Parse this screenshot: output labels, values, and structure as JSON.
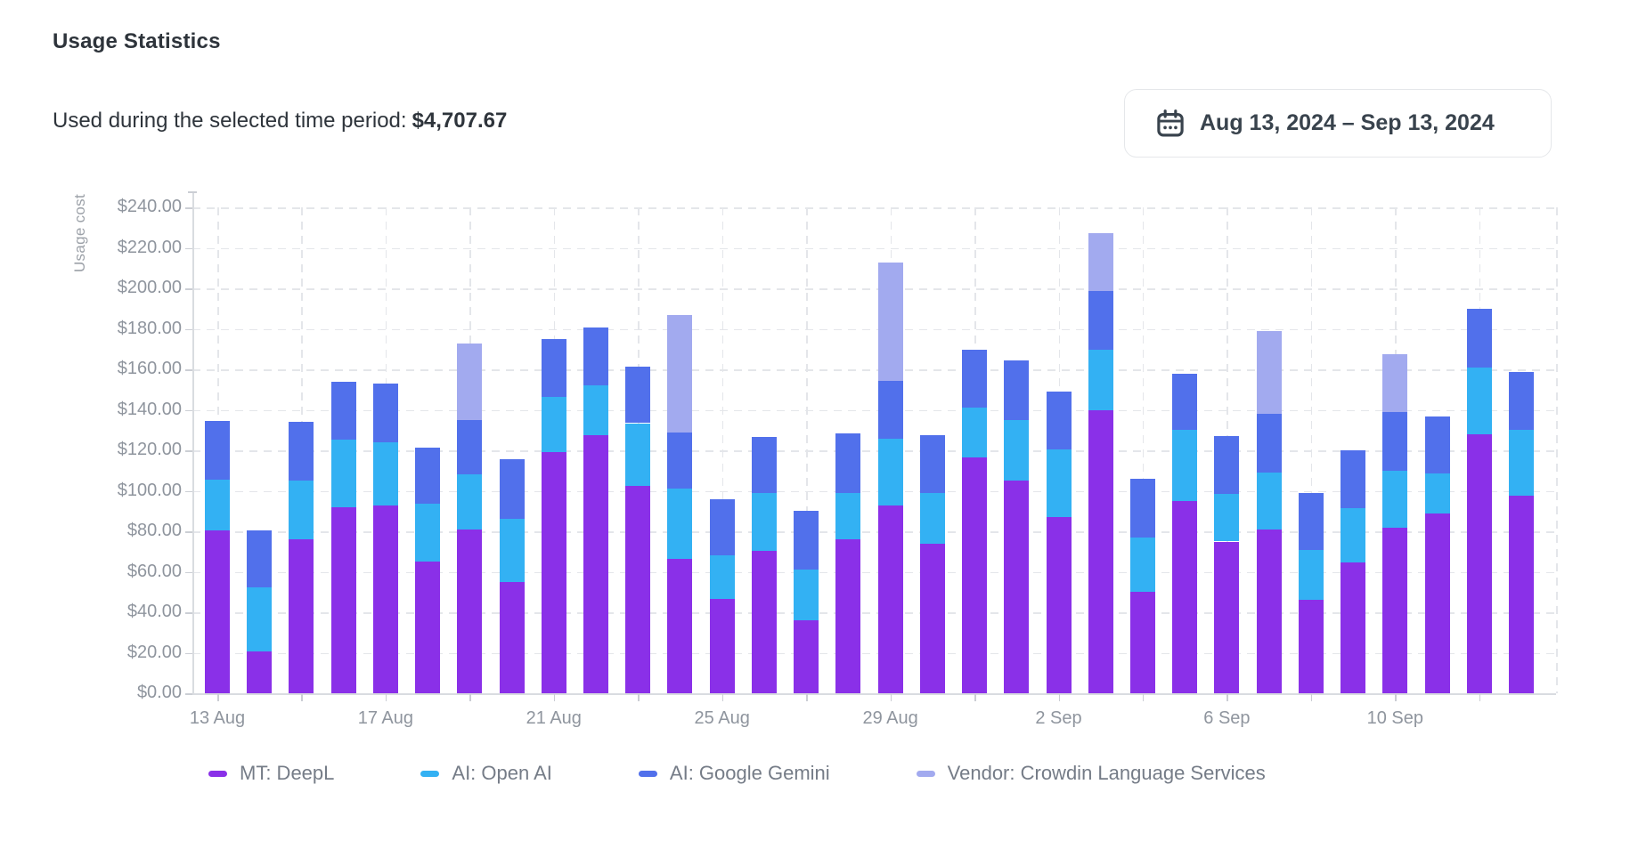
{
  "header": {
    "title": "Usage Statistics",
    "subtitle_label": "Used during the selected time period:",
    "subtitle_value": "$4,707.67",
    "date_range": "Aug 13, 2024 – Sep 13, 2024",
    "calendar_icon": "calendar-icon"
  },
  "chart_data": {
    "type": "bar",
    "stacked": true,
    "title": "",
    "xlabel": "",
    "ylabel": "Usage cost",
    "ylim": [
      0,
      240
    ],
    "ytick_step": 20,
    "ytick_prefix": "$",
    "grid": "dashed",
    "legend_position": "bottom",
    "categories": [
      "13 Aug",
      "14 Aug",
      "15 Aug",
      "16 Aug",
      "17 Aug",
      "18 Aug",
      "19 Aug",
      "20 Aug",
      "21 Aug",
      "22 Aug",
      "23 Aug",
      "24 Aug",
      "25 Aug",
      "26 Aug",
      "27 Aug",
      "28 Aug",
      "29 Aug",
      "30 Aug",
      "31 Aug",
      "1 Sep",
      "2 Sep",
      "3 Sep",
      "4 Sep",
      "5 Sep",
      "6 Sep",
      "7 Sep",
      "8 Sep",
      "9 Sep",
      "10 Sep",
      "11 Sep",
      "12 Sep",
      "13 Sep"
    ],
    "x_axis_labels": [
      "13 Aug",
      "17 Aug",
      "21 Aug",
      "25 Aug",
      "29 Aug",
      "2 Sep",
      "6 Sep",
      "10 Sep"
    ],
    "x_label_indices": [
      0,
      4,
      8,
      12,
      16,
      20,
      24,
      28
    ],
    "series": [
      {
        "name": "MT: DeepL",
        "color": "#8a30e8",
        "values": [
          80.5,
          20.5,
          76,
          92,
          93,
          65,
          81,
          55,
          119,
          127.5,
          102.5,
          66.5,
          46.5,
          70.5,
          36,
          76,
          93,
          74,
          116.5,
          105,
          87,
          140,
          50,
          95,
          75,
          81,
          46,
          64.5,
          82,
          89,
          128,
          97.5
        ]
      },
      {
        "name": "AI: Open AI",
        "color": "#33b1f3",
        "values": [
          25,
          32,
          29,
          33.5,
          31,
          28.5,
          27,
          31,
          27.5,
          24.5,
          31,
          34.5,
          21.5,
          28.5,
          25,
          23,
          33,
          25,
          24.5,
          30,
          33.5,
          30,
          27,
          35,
          23.5,
          28,
          25,
          27,
          28,
          19.5,
          33,
          32.5
        ]
      },
      {
        "name": "AI: Google Gemini",
        "color": "#5170eb",
        "values": [
          29,
          28,
          29,
          28.5,
          29,
          28,
          27,
          29.5,
          28.5,
          29,
          28,
          28,
          28,
          27.5,
          29,
          29.5,
          28.5,
          28.5,
          29,
          29.5,
          28.5,
          29,
          29,
          28,
          28.5,
          29,
          28,
          28.5,
          29,
          28.5,
          29,
          29
        ]
      },
      {
        "name": "Vendor: Crowdin Language Services",
        "color": "#a2aaef",
        "values": [
          0,
          0,
          0,
          0,
          0,
          0,
          38,
          0,
          0,
          0,
          0,
          58,
          0,
          0,
          0,
          0,
          58.5,
          0,
          0,
          0,
          0,
          28.5,
          0,
          0,
          0,
          41,
          0,
          0,
          28.5,
          0,
          0,
          0
        ]
      }
    ]
  }
}
